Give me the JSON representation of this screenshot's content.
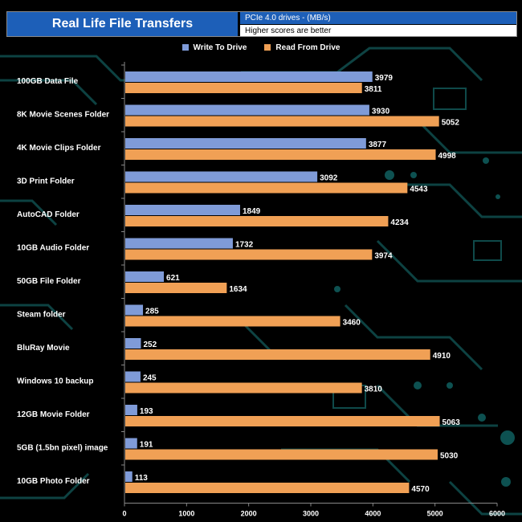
{
  "header": {
    "title": "Real Life File Transfers",
    "units": "PCIe 4.0 drives - (MB/s)",
    "note": "Higher scores are better"
  },
  "colors": {
    "write": "#7f9bd8",
    "read": "#f0a055",
    "header_blue": "#1d5fb8"
  },
  "chart_data": {
    "type": "bar",
    "orientation": "horizontal",
    "title": "Real Life File Transfers",
    "xlabel": "",
    "ylabel": "",
    "xlim": [
      0,
      6000
    ],
    "x_ticks": [
      0,
      1000,
      2000,
      3000,
      4000,
      5000,
      6000
    ],
    "legend_position": "top-center",
    "categories": [
      "100GB Data File",
      "8K Movie Scenes Folder",
      "4K Movie Clips Folder",
      "3D Print Folder",
      "AutoCAD Folder",
      "10GB Audio Folder",
      "50GB File Folder",
      "Steam folder",
      "BluRay Movie",
      "Windows 10 backup",
      "12GB Movie Folder",
      "5GB (1.5bn pixel) image",
      "10GB Photo Folder"
    ],
    "series": [
      {
        "name": "Write To  Drive",
        "values": [
          3979,
          3930,
          3877,
          3092,
          1849,
          1732,
          621,
          285,
          252,
          245,
          193,
          191,
          113
        ]
      },
      {
        "name": "Read From  Drive",
        "values": [
          3811,
          5052,
          4998,
          4543,
          4234,
          3974,
          1634,
          3460,
          4910,
          3810,
          5063,
          5030,
          4570
        ]
      }
    ]
  }
}
